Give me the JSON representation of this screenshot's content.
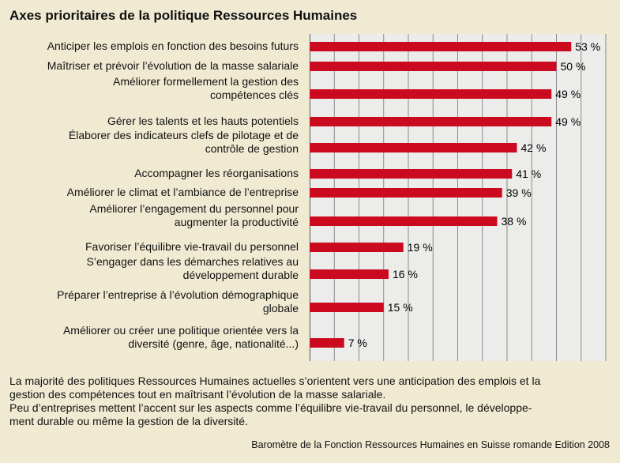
{
  "chart_data": {
    "type": "bar",
    "orientation": "horizontal",
    "title": "Axes prioritaires de la politique Ressources Humaines",
    "categories": [
      [
        "Anticiper les emplois en fonction des besoins futurs"
      ],
      [
        "Maîtriser et prévoir l’évolution de la masse salariale"
      ],
      [
        "Améliorer formellement la gestion des",
        "compétences clés"
      ],
      [
        "Gérer les talents et les hauts potentiels"
      ],
      [
        "Élaborer des indicateurs clefs de pilotage et de",
        "contrôle de gestion"
      ],
      [
        "Accompagner les réorganisations"
      ],
      [
        "Améliorer le climat et l’ambiance de l’entreprise"
      ],
      [
        "Améliorer l’engagement du personnel pour",
        "augmenter la productivité"
      ],
      [
        "Favoriser l’équilibre vie-travail du personnel"
      ],
      [
        "S’engager dans les démarches relatives au",
        "développement durable"
      ],
      [
        "Préparer l’entreprise à l’évolution démographique",
        "globale"
      ],
      [
        "Améliorer ou créer une politique orientée vers la",
        "diversité (genre, âge, nationalité...)"
      ]
    ],
    "values": [
      53,
      50,
      49,
      49,
      42,
      41,
      39,
      38,
      19,
      16,
      15,
      7
    ],
    "value_labels": [
      "53 %",
      "50 %",
      "49 %",
      "49 %",
      "42 %",
      "41 %",
      "39 %",
      "38 %",
      "19 %",
      "16 %",
      "15 %",
      "7 %"
    ],
    "xlim": [
      0,
      60
    ],
    "grid": "vertical every 5",
    "colors": {
      "bar": "#cc0a1f",
      "plot_bg": "#ececea",
      "page_bg": "#f1ead3"
    }
  },
  "note": [
    "La majorité des politiques Ressources Humaines actuelles s’orientent vers une anticipation des emplois et la",
    "gestion des compétences tout en maîtrisant l’évolution de la masse salariale.",
    "Peu d’entreprises mettent l’accent sur les aspects comme l’équilibre vie-travail du personnel, le développe-",
    "ment durable ou même la gestion de la diversité."
  ],
  "source": "Baromètre de la Fonction Ressources Humaines en Suisse romande Edition 2008"
}
